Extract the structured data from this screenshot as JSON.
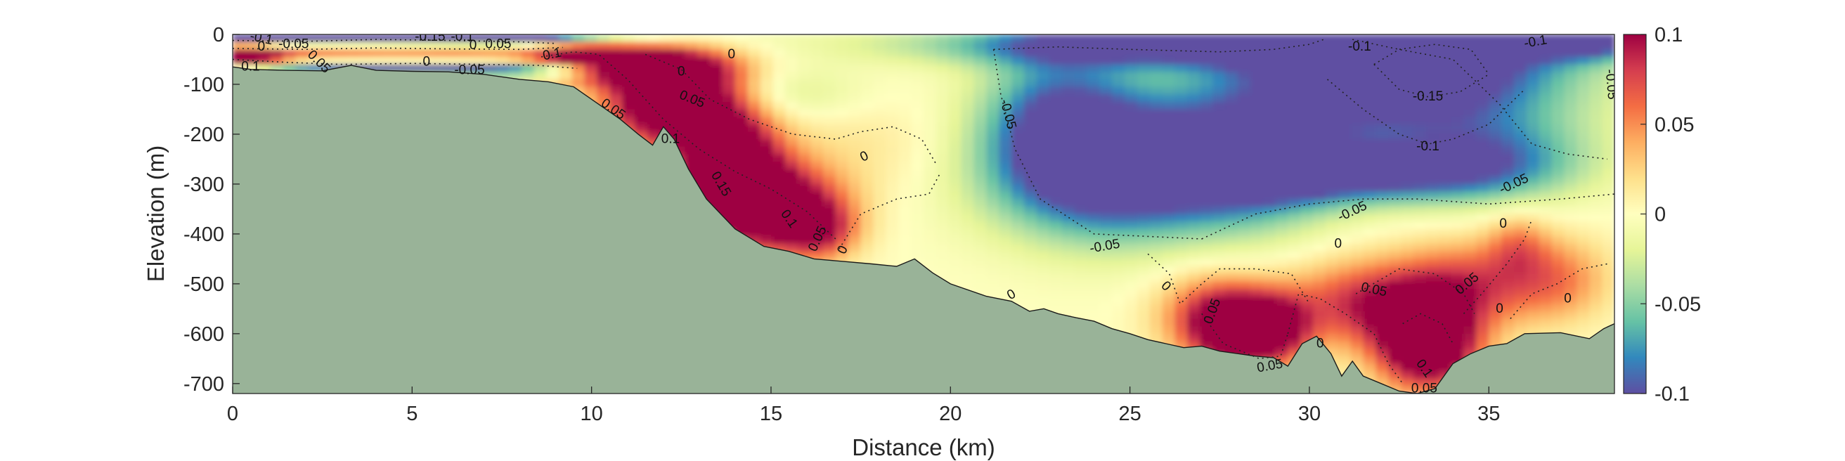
{
  "chart_data": {
    "type": "heatmap",
    "xlabel": "Distance (km)",
    "ylabel": "Elevation (m)",
    "xlim": [
      0,
      38.5
    ],
    "ylim": [
      -720,
      0
    ],
    "xticks": [
      0,
      5,
      10,
      15,
      20,
      25,
      30,
      35
    ],
    "yticks": [
      0,
      -100,
      -200,
      -300,
      -400,
      -500,
      -600,
      -700
    ],
    "colorbar": {
      "colormap": "spectral-reversed",
      "range": [
        -0.1,
        0.1
      ],
      "ticks": [
        0.1,
        0.05,
        0,
        -0.05,
        -0.1
      ],
      "tick_labels": [
        "0.1",
        "0.05",
        "0",
        "-0.05",
        "-0.1"
      ],
      "colors": [
        "#5e4fa2",
        "#3288bd",
        "#66c2a5",
        "#abdda4",
        "#e6f598",
        "#ffffbf",
        "#fee08b",
        "#fdae61",
        "#f46d43",
        "#d53e4f",
        "#9e0142"
      ]
    },
    "seabed_color": "#99b398",
    "bathymetry": {
      "x": [
        0,
        0.5,
        1.5,
        2.5,
        3.3,
        4,
        5,
        6,
        7,
        8,
        8.8,
        9.5,
        10.2,
        10.8,
        11.3,
        11.7,
        12,
        12.3,
        12.7,
        13.2,
        14,
        14.8,
        15.5,
        16.2,
        17,
        17.8,
        18.5,
        19,
        19.5,
        20,
        21,
        21.7,
        22.2,
        22.6,
        23,
        23.5,
        24,
        24.5,
        25,
        25.5,
        26,
        26.5,
        27,
        27.5,
        28,
        28.5,
        29,
        29.4,
        29.8,
        30.2,
        30.6,
        30.9,
        31.2,
        31.5,
        32,
        32.5,
        33,
        33.5,
        34,
        34.5,
        35,
        35.5,
        36,
        37,
        37.8,
        38.2,
        38.5
      ],
      "y": [
        -65,
        -70,
        -72,
        -73,
        -62,
        -72,
        -74,
        -75,
        -80,
        -90,
        -95,
        -105,
        -140,
        -170,
        -200,
        -222,
        -185,
        -210,
        -270,
        -330,
        -390,
        -425,
        -435,
        -450,
        -455,
        -460,
        -465,
        -450,
        -478,
        -500,
        -525,
        -535,
        -555,
        -550,
        -560,
        -568,
        -575,
        -590,
        -600,
        -612,
        -620,
        -628,
        -625,
        -635,
        -640,
        -645,
        -648,
        -665,
        -620,
        -605,
        -640,
        -685,
        -655,
        -685,
        -700,
        -715,
        -720,
        -710,
        -660,
        -640,
        -625,
        -620,
        -600,
        -598,
        -610,
        -590,
        -580
      ]
    },
    "anomalies": [
      {
        "x": 11.6,
        "y": -65,
        "sx": 1.6,
        "sy": 28,
        "v": 0.13
      },
      {
        "x": 9.6,
        "y": -40,
        "sx": 1.0,
        "sy": 20,
        "v": 0.08
      },
      {
        "x": 12.3,
        "y": -140,
        "sx": 1.3,
        "sy": 55,
        "v": 0.16
      },
      {
        "x": 13.8,
        "y": -260,
        "sx": 1.0,
        "sy": 70,
        "v": 0.15
      },
      {
        "x": 15.1,
        "y": -350,
        "sx": 1.3,
        "sy": 60,
        "v": 0.14
      },
      {
        "x": 16.4,
        "y": -395,
        "sx": 0.7,
        "sy": 40,
        "v": 0.06
      },
      {
        "x": 17.5,
        "y": -220,
        "sx": 2.0,
        "sy": 70,
        "v": 0.015
      },
      {
        "x": 0.3,
        "y": -45,
        "sx": 0.8,
        "sy": 18,
        "v": 0.12
      },
      {
        "x": 1.0,
        "y": -5,
        "sx": 1.5,
        "sy": 9,
        "v": -0.14
      },
      {
        "x": 4.5,
        "y": -5,
        "sx": 3.5,
        "sy": 9,
        "v": -0.14
      },
      {
        "x": 7.5,
        "y": -8,
        "sx": 2.0,
        "sy": 10,
        "v": -0.07
      },
      {
        "x": 4.0,
        "y": -70,
        "sx": 3.5,
        "sy": 7,
        "v": -0.1
      },
      {
        "x": 8.0,
        "y": -75,
        "sx": 1.5,
        "sy": 7,
        "v": -0.07
      },
      {
        "x": 2.5,
        "y": -35,
        "sx": 2.0,
        "sy": 10,
        "v": 0.05
      },
      {
        "x": 6.5,
        "y": -35,
        "sx": 1.5,
        "sy": 10,
        "v": 0.04
      },
      {
        "x": 32.5,
        "y": -60,
        "sx": 3.2,
        "sy": 95,
        "v": -0.16
      },
      {
        "x": 26.5,
        "y": -20,
        "sx": 5.0,
        "sy": 30,
        "v": -0.11
      },
      {
        "x": 37.8,
        "y": -15,
        "sx": 1.3,
        "sy": 25,
        "v": -0.09
      },
      {
        "x": 24.5,
        "y": -270,
        "sx": 2.3,
        "sy": 95,
        "v": -0.14
      },
      {
        "x": 28.5,
        "y": -250,
        "sx": 1.8,
        "sy": 90,
        "v": -0.1
      },
      {
        "x": 31.5,
        "y": -280,
        "sx": 2.5,
        "sy": 40,
        "v": -0.09
      },
      {
        "x": 35.0,
        "y": -250,
        "sx": 2.0,
        "sy": 60,
        "v": -0.07
      },
      {
        "x": 23.0,
        "y": -150,
        "sx": 1.5,
        "sy": 100,
        "v": -0.07
      },
      {
        "x": 15.5,
        "y": -120,
        "sx": 1.5,
        "sy": 40,
        "v": -0.025
      },
      {
        "x": 28.0,
        "y": -590,
        "sx": 0.9,
        "sy": 55,
        "v": 0.13
      },
      {
        "x": 29.2,
        "y": -590,
        "sx": 0.7,
        "sy": 50,
        "v": 0.07
      },
      {
        "x": 33.3,
        "y": -620,
        "sx": 1.0,
        "sy": 65,
        "v": 0.15
      },
      {
        "x": 31.5,
        "y": -540,
        "sx": 1.5,
        "sy": 60,
        "v": 0.08
      },
      {
        "x": 34.5,
        "y": -500,
        "sx": 1.5,
        "sy": 60,
        "v": 0.07
      },
      {
        "x": 37.0,
        "y": -490,
        "sx": 1.0,
        "sy": 60,
        "v": 0.045
      },
      {
        "x": 27.0,
        "y": -560,
        "sx": 1.0,
        "sy": 60,
        "v": 0.05
      },
      {
        "x": 35.8,
        "y": -420,
        "sx": 0.6,
        "sy": 45,
        "v": 0.04
      }
    ],
    "contour_labels": [
      {
        "text": "-0.1",
        "x": 0.8,
        "y": -8,
        "rot": 12
      },
      {
        "text": "0",
        "x": 0.8,
        "y": -25,
        "rot": 0
      },
      {
        "text": "-0.05",
        "x": 1.7,
        "y": -20,
        "rot": 0
      },
      {
        "text": "0.05",
        "x": 2.4,
        "y": -55,
        "rot": 45
      },
      {
        "text": "0.1",
        "x": 0.5,
        "y": -65,
        "rot": 0
      },
      {
        "text": "-0.15",
        "x": 5.5,
        "y": -5,
        "rot": 0
      },
      {
        "text": "-0.1",
        "x": 6.4,
        "y": -5,
        "rot": 0
      },
      {
        "text": "0",
        "x": 6.7,
        "y": -22,
        "rot": 0
      },
      {
        "text": "0.05",
        "x": 7.4,
        "y": -20,
        "rot": 0
      },
      {
        "text": "0",
        "x": 5.4,
        "y": -55,
        "rot": 0
      },
      {
        "text": "-0.05",
        "x": 6.6,
        "y": -72,
        "rot": 0
      },
      {
        "text": "0.1",
        "x": 8.9,
        "y": -40,
        "rot": -12
      },
      {
        "text": "0",
        "x": 12.5,
        "y": -75,
        "rot": 0
      },
      {
        "text": "0",
        "x": 13.9,
        "y": -40,
        "rot": 0
      },
      {
        "text": "0.05",
        "x": 10.6,
        "y": -150,
        "rot": 35
      },
      {
        "text": "0.05",
        "x": 12.8,
        "y": -130,
        "rot": 22
      },
      {
        "text": "0.1",
        "x": 12.2,
        "y": -210,
        "rot": 0
      },
      {
        "text": "0.15",
        "x": 13.6,
        "y": -300,
        "rot": 60
      },
      {
        "text": "0.1",
        "x": 15.5,
        "y": -370,
        "rot": 55
      },
      {
        "text": "0.05",
        "x": 16.3,
        "y": -410,
        "rot": -65
      },
      {
        "text": "0",
        "x": 17.0,
        "y": -432,
        "rot": -65
      },
      {
        "text": "0",
        "x": 17.6,
        "y": -245,
        "rot": -25
      },
      {
        "text": "-0.05",
        "x": 21.6,
        "y": -160,
        "rot": 75
      },
      {
        "text": "0",
        "x": 21.7,
        "y": -522,
        "rot": -30
      },
      {
        "text": "-0.05",
        "x": 24.3,
        "y": -425,
        "rot": -10
      },
      {
        "text": "0",
        "x": 26.0,
        "y": -505,
        "rot": 45
      },
      {
        "text": "0.05",
        "x": 27.3,
        "y": -555,
        "rot": -70
      },
      {
        "text": "0.05",
        "x": 28.9,
        "y": -665,
        "rot": -10
      },
      {
        "text": "0",
        "x": 30.3,
        "y": -620,
        "rot": 0
      },
      {
        "text": "0",
        "x": 30.8,
        "y": -420,
        "rot": 0
      },
      {
        "text": "-0.05",
        "x": 31.2,
        "y": -355,
        "rot": -25
      },
      {
        "text": "0.05",
        "x": 31.8,
        "y": -512,
        "rot": 12
      },
      {
        "text": "-0.1",
        "x": 31.4,
        "y": -25,
        "rot": 0
      },
      {
        "text": "-0.1",
        "x": 36.3,
        "y": -15,
        "rot": -10
      },
      {
        "text": "-0.15",
        "x": 33.3,
        "y": -125,
        "rot": 0
      },
      {
        "text": "-0.1",
        "x": 33.3,
        "y": -225,
        "rot": 0
      },
      {
        "text": "-0.05",
        "x": 35.7,
        "y": -300,
        "rot": -25
      },
      {
        "text": "0.05",
        "x": 34.4,
        "y": -500,
        "rot": -40
      },
      {
        "text": "0",
        "x": 35.4,
        "y": -380,
        "rot": 0
      },
      {
        "text": "0",
        "x": 35.3,
        "y": -550,
        "rot": 0
      },
      {
        "text": "0",
        "x": 37.2,
        "y": -530,
        "rot": 0
      },
      {
        "text": "0.1",
        "x": 33.2,
        "y": -670,
        "rot": 55
      },
      {
        "text": "0.05",
        "x": 33.2,
        "y": -710,
        "rot": 0
      },
      {
        "text": "-0.05",
        "x": 38.4,
        "y": -100,
        "rot": 85
      }
    ],
    "contour_lines": [
      {
        "x": [
          8.6,
          9.5,
          10.2,
          11.0,
          12.0,
          13.0,
          14.0,
          15.0,
          16.0,
          16.8
        ],
        "y": [
          -45,
          -35,
          -40,
          -90,
          -170,
          -230,
          -275,
          -310,
          -355,
          -410
        ]
      },
      {
        "x": [
          11.5,
          12.5,
          13.3,
          14.4,
          15.6,
          16.8,
          17.5,
          18.4,
          19.2,
          19.6
        ],
        "y": [
          -40,
          -70,
          -130,
          -170,
          -200,
          -210,
          -195,
          -185,
          -210,
          -260
        ]
      },
      {
        "x": [
          16.9,
          17.5,
          18.5,
          19.4,
          19.7
        ],
        "y": [
          -430,
          -360,
          -330,
          -320,
          -280
        ]
      },
      {
        "x": [
          21.2,
          23.0,
          25.0,
          27.5,
          29.0,
          30.0,
          30.4
        ],
        "y": [
          -30,
          -25,
          -30,
          -35,
          -30,
          -20,
          -10
        ]
      },
      {
        "x": [
          21.2,
          21.4,
          21.8,
          22.5,
          24.0,
          25.5,
          27.0
        ],
        "y": [
          -30,
          -120,
          -230,
          -330,
          -400,
          -405,
          -410
        ]
      },
      {
        "x": [
          27.0,
          28.5,
          30.0,
          31.5,
          33.0,
          35.0,
          37.0,
          38.5
        ],
        "y": [
          -410,
          -360,
          -340,
          -330,
          -330,
          -340,
          -330,
          -320
        ]
      },
      {
        "x": [
          31.2,
          32.5,
          34.0,
          35.3,
          36.2,
          37.2,
          38.3
        ],
        "y": [
          -10,
          -30,
          -50,
          -140,
          -220,
          -240,
          -250
        ]
      },
      {
        "x": [
          31.8,
          32.5,
          33.5,
          34.5,
          35.0
        ],
        "y": [
          -60,
          -30,
          -20,
          -30,
          -80
        ]
      },
      {
        "x": [
          31.8,
          32.5,
          33.3,
          34.2,
          35.0
        ],
        "y": [
          -60,
          -110,
          -125,
          -115,
          -80
        ]
      },
      {
        "x": [
          30.5,
          31.5,
          32.5,
          33.3,
          34.0,
          35.0,
          36.0
        ],
        "y": [
          -90,
          -150,
          -200,
          -220,
          -210,
          -180,
          -110
        ]
      },
      {
        "x": [
          25.5,
          26.1,
          26.4,
          27.0,
          27.5,
          28.5,
          29.5,
          30.0
        ],
        "y": [
          -440,
          -480,
          -540,
          -500,
          -470,
          -470,
          -480,
          -540
        ]
      },
      {
        "x": [
          27.0,
          27.6,
          28.6,
          29.2,
          29.4
        ],
        "y": [
          -560,
          -620,
          -650,
          -645,
          -600
        ]
      },
      {
        "x": [
          29.4,
          29.7,
          30.3,
          31.0,
          31.8,
          32.2,
          32.6
        ],
        "y": [
          -600,
          -520,
          -530,
          -560,
          -600,
          -660,
          -700
        ]
      },
      {
        "x": [
          31.3,
          32.5,
          33.5,
          34.3,
          34.6
        ],
        "y": [
          -520,
          -470,
          -480,
          -520,
          -560
        ]
      },
      {
        "x": [
          34.3,
          34.8,
          35.5,
          36.0,
          36.2
        ],
        "y": [
          -560,
          -520,
          -460,
          -410,
          -370
        ]
      },
      {
        "x": [
          35.6,
          36.2,
          36.9,
          37.6,
          38.3
        ],
        "y": [
          -570,
          -520,
          -500,
          -470,
          -460
        ]
      },
      {
        "x": [
          32.6,
          33.1,
          33.7,
          34.0
        ],
        "y": [
          -580,
          -560,
          -580,
          -620
        ]
      }
    ],
    "surface_contours": [
      {
        "x": [
          0,
          2,
          4,
          6,
          8,
          9
        ],
        "y": [
          -12,
          -14,
          -10,
          -12,
          -15,
          -18
        ]
      },
      {
        "x": [
          0,
          2,
          4,
          6,
          8,
          9.2
        ],
        "y": [
          -28,
          -30,
          -27,
          -29,
          -30,
          -26
        ]
      },
      {
        "x": [
          0,
          1.5,
          3,
          5,
          7,
          8.5,
          9.6
        ],
        "y": [
          -50,
          -56,
          -60,
          -58,
          -60,
          -62,
          -68
        ]
      }
    ]
  }
}
